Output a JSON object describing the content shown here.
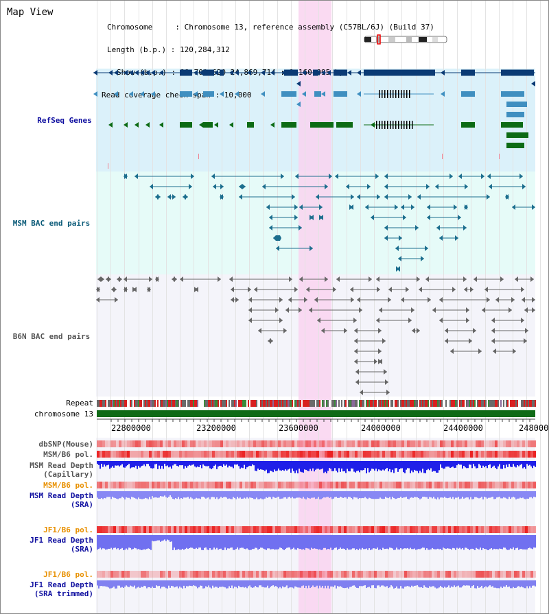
{
  "title": "Map View",
  "header": {
    "chromosome": "Chromosome     : Chromosome 13, reference assembly (C57BL/6J) (Build 37)",
    "length": "Length (b.p.) : 120,284,312",
    "show": "Show (b.p.) : 22,709,620-24,869,714 : 2,160,095 bp",
    "coverage": "Read coverage check span : 10,000"
  },
  "tracks": {
    "refseq": "RefSeq Genes",
    "msm_bac": "MSM BAC end pairs",
    "b6n_bac": "B6N BAC end pairs",
    "repeat": "Repeat",
    "chromosome": "chromosome 13",
    "dbsnp": "dbSNP(Mouse)",
    "msm_b6_pol1": "MSM/B6 pol.",
    "msm_depth_cap_1": "MSM Read Depth",
    "msm_depth_cap_2": "(Capillary)",
    "msm_b6_pol2": "MSM/B6 pol.",
    "msm_depth_sra_1": "MSM Read Depth",
    "msm_depth_sra_2": "(SRA)",
    "jf1_pol1": "JF1/B6 pol.",
    "jf1_depth_sra_1": "JF1 Read Depth",
    "jf1_depth_sra_2": "(SRA)",
    "jf1_pol2": "JF1/B6 pol.",
    "jf1_depth_trim_1": "JF1 Read Depth",
    "jf1_depth_trim_2": "(SRA trimmed)"
  },
  "axis_ticks": [
    "22800000",
    "23200000",
    "23600000",
    "24000000",
    "24400000",
    "248000"
  ],
  "colors": {
    "highlight": "#f9d3f0",
    "refseq_bg": "#dbf1fa",
    "msm_bg": "#e6fbf8",
    "b6n_bg": "#f4f4fa",
    "gene_dark": "#0a3a74",
    "gene_mid": "#3f8fc0",
    "gene_green": "#0c6b14",
    "bac_msm": "#1c6e8e",
    "bac_b6n": "#666666",
    "chrom_green": "#0f6a16",
    "depth_blue": "#2020e8",
    "label_blue": "#1010a0",
    "label_orange": "#e89000"
  }
}
